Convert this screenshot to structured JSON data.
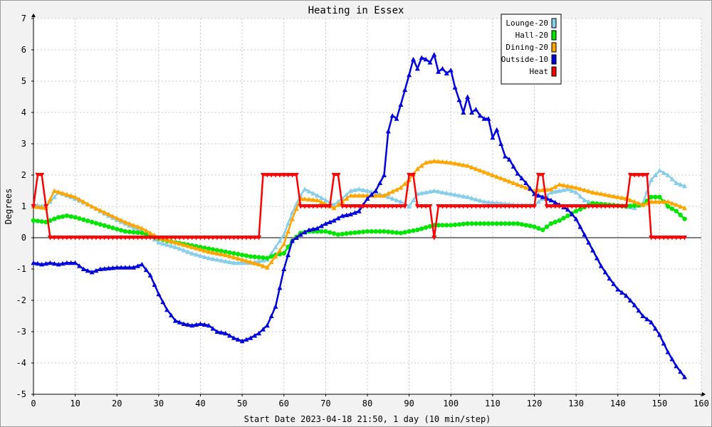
{
  "chart_data": {
    "type": "line",
    "title": "Heating in Essex",
    "xlabel": "Start Date 2023-04-18 21:50, 1 day (10 min/step)",
    "ylabel": "Degrees",
    "xlim": [
      0,
      160
    ],
    "ylim": [
      -5,
      7
    ],
    "x_ticks": [
      0,
      10,
      20,
      30,
      40,
      50,
      60,
      70,
      80,
      90,
      100,
      110,
      120,
      130,
      140,
      150,
      160
    ],
    "y_ticks": [
      -5,
      -4,
      -3,
      -2,
      -1,
      0,
      1,
      2,
      3,
      4,
      5,
      6,
      7
    ],
    "grid": true,
    "legend_position": "top-right",
    "series": [
      {
        "name": "Lounge-20",
        "color": "#87ceeb",
        "marker": "triangle",
        "points": [
          [
            0,
            1.05
          ],
          [
            3,
            1.0
          ],
          [
            6,
            1.45
          ],
          [
            10,
            1.25
          ],
          [
            14,
            1.0
          ],
          [
            18,
            0.7
          ],
          [
            22,
            0.45
          ],
          [
            26,
            0.2
          ],
          [
            28,
            0.05
          ],
          [
            30,
            -0.15
          ],
          [
            34,
            -0.3
          ],
          [
            38,
            -0.5
          ],
          [
            42,
            -0.65
          ],
          [
            46,
            -0.75
          ],
          [
            48,
            -0.8
          ],
          [
            52,
            -0.8
          ],
          [
            56,
            -0.7
          ],
          [
            58,
            -0.3
          ],
          [
            60,
            0.1
          ],
          [
            62,
            0.8
          ],
          [
            64,
            1.35
          ],
          [
            65,
            1.55
          ],
          [
            68,
            1.35
          ],
          [
            72,
            1.05
          ],
          [
            74,
            1.25
          ],
          [
            76,
            1.5
          ],
          [
            78,
            1.55
          ],
          [
            80,
            1.5
          ],
          [
            84,
            1.35
          ],
          [
            88,
            1.15
          ],
          [
            90,
            1.0
          ],
          [
            92,
            1.4
          ],
          [
            96,
            1.5
          ],
          [
            100,
            1.4
          ],
          [
            104,
            1.3
          ],
          [
            108,
            1.15
          ],
          [
            112,
            1.1
          ],
          [
            116,
            1.05
          ],
          [
            120,
            1.05
          ],
          [
            122,
            1.25
          ],
          [
            124,
            1.45
          ],
          [
            128,
            1.55
          ],
          [
            130,
            1.45
          ],
          [
            132,
            1.2
          ],
          [
            135,
            1.05
          ],
          [
            140,
            1.05
          ],
          [
            144,
            0.95
          ],
          [
            146,
            1.1
          ],
          [
            148,
            1.85
          ],
          [
            150,
            2.15
          ],
          [
            152,
            2.0
          ],
          [
            154,
            1.75
          ],
          [
            156,
            1.65
          ]
        ]
      },
      {
        "name": "Hall-20",
        "color": "#00e600",
        "marker": "circle",
        "points": [
          [
            0,
            0.55
          ],
          [
            3,
            0.5
          ],
          [
            6,
            0.65
          ],
          [
            8,
            0.7
          ],
          [
            10,
            0.65
          ],
          [
            14,
            0.5
          ],
          [
            18,
            0.35
          ],
          [
            22,
            0.2
          ],
          [
            26,
            0.15
          ],
          [
            28,
            0.05
          ],
          [
            32,
            -0.1
          ],
          [
            36,
            -0.2
          ],
          [
            40,
            -0.3
          ],
          [
            44,
            -0.4
          ],
          [
            48,
            -0.5
          ],
          [
            52,
            -0.6
          ],
          [
            56,
            -0.65
          ],
          [
            58,
            -0.55
          ],
          [
            60,
            -0.5
          ],
          [
            62,
            -0.1
          ],
          [
            64,
            0.15
          ],
          [
            66,
            0.2
          ],
          [
            70,
            0.2
          ],
          [
            73,
            0.1
          ],
          [
            76,
            0.15
          ],
          [
            80,
            0.2
          ],
          [
            84,
            0.2
          ],
          [
            88,
            0.15
          ],
          [
            92,
            0.25
          ],
          [
            96,
            0.4
          ],
          [
            100,
            0.4
          ],
          [
            104,
            0.45
          ],
          [
            108,
            0.45
          ],
          [
            112,
            0.45
          ],
          [
            116,
            0.45
          ],
          [
            120,
            0.35
          ],
          [
            122,
            0.25
          ],
          [
            124,
            0.45
          ],
          [
            126,
            0.55
          ],
          [
            130,
            0.85
          ],
          [
            134,
            1.1
          ],
          [
            138,
            1.05
          ],
          [
            142,
            1.0
          ],
          [
            146,
            1.05
          ],
          [
            148,
            1.3
          ],
          [
            150,
            1.3
          ],
          [
            152,
            1.0
          ],
          [
            154,
            0.85
          ],
          [
            156,
            0.6
          ]
        ]
      },
      {
        "name": "Dining-20",
        "color": "#ffa500",
        "marker": "triangle",
        "points": [
          [
            0,
            1.0
          ],
          [
            3,
            0.95
          ],
          [
            5,
            1.5
          ],
          [
            10,
            1.3
          ],
          [
            14,
            1.0
          ],
          [
            18,
            0.75
          ],
          [
            22,
            0.5
          ],
          [
            26,
            0.3
          ],
          [
            30,
            0.0
          ],
          [
            34,
            -0.15
          ],
          [
            38,
            -0.3
          ],
          [
            42,
            -0.45
          ],
          [
            46,
            -0.55
          ],
          [
            50,
            -0.7
          ],
          [
            54,
            -0.85
          ],
          [
            56,
            -0.95
          ],
          [
            58,
            -0.6
          ],
          [
            60,
            -0.2
          ],
          [
            62,
            0.6
          ],
          [
            64,
            1.25
          ],
          [
            68,
            1.2
          ],
          [
            72,
            0.95
          ],
          [
            76,
            1.35
          ],
          [
            80,
            1.35
          ],
          [
            84,
            1.35
          ],
          [
            88,
            1.6
          ],
          [
            90,
            1.85
          ],
          [
            92,
            2.2
          ],
          [
            94,
            2.4
          ],
          [
            96,
            2.45
          ],
          [
            100,
            2.4
          ],
          [
            104,
            2.3
          ],
          [
            108,
            2.1
          ],
          [
            112,
            1.9
          ],
          [
            116,
            1.7
          ],
          [
            120,
            1.5
          ],
          [
            124,
            1.55
          ],
          [
            126,
            1.7
          ],
          [
            130,
            1.6
          ],
          [
            134,
            1.45
          ],
          [
            138,
            1.35
          ],
          [
            142,
            1.25
          ],
          [
            146,
            1.05
          ],
          [
            148,
            1.15
          ],
          [
            152,
            1.15
          ],
          [
            156,
            0.95
          ]
        ]
      },
      {
        "name": "Outside-10",
        "color": "#0000dd",
        "marker": "triangle",
        "points": [
          [
            0,
            -0.8
          ],
          [
            2,
            -0.85
          ],
          [
            4,
            -0.8
          ],
          [
            6,
            -0.85
          ],
          [
            8,
            -0.8
          ],
          [
            10,
            -0.8
          ],
          [
            12,
            -1.0
          ],
          [
            14,
            -1.1
          ],
          [
            16,
            -1.0
          ],
          [
            20,
            -0.95
          ],
          [
            24,
            -0.95
          ],
          [
            26,
            -0.85
          ],
          [
            28,
            -1.2
          ],
          [
            30,
            -1.8
          ],
          [
            32,
            -2.3
          ],
          [
            34,
            -2.65
          ],
          [
            36,
            -2.75
          ],
          [
            38,
            -2.8
          ],
          [
            40,
            -2.75
          ],
          [
            42,
            -2.8
          ],
          [
            44,
            -3.0
          ],
          [
            46,
            -3.05
          ],
          [
            48,
            -3.2
          ],
          [
            50,
            -3.3
          ],
          [
            52,
            -3.2
          ],
          [
            54,
            -3.05
          ],
          [
            56,
            -2.8
          ],
          [
            58,
            -2.2
          ],
          [
            60,
            -1.0
          ],
          [
            62,
            -0.1
          ],
          [
            64,
            0.1
          ],
          [
            66,
            0.25
          ],
          [
            68,
            0.3
          ],
          [
            70,
            0.45
          ],
          [
            72,
            0.55
          ],
          [
            74,
            0.7
          ],
          [
            76,
            0.75
          ],
          [
            78,
            0.85
          ],
          [
            80,
            1.25
          ],
          [
            82,
            1.5
          ],
          [
            84,
            2.0
          ],
          [
            85,
            3.4
          ],
          [
            86,
            3.9
          ],
          [
            87,
            3.8
          ],
          [
            88,
            4.25
          ],
          [
            90,
            5.2
          ],
          [
            91,
            5.7
          ],
          [
            92,
            5.4
          ],
          [
            93,
            5.75
          ],
          [
            94,
            5.7
          ],
          [
            95,
            5.6
          ],
          [
            96,
            5.85
          ],
          [
            97,
            5.3
          ],
          [
            98,
            5.4
          ],
          [
            99,
            5.25
          ],
          [
            100,
            5.35
          ],
          [
            101,
            4.8
          ],
          [
            102,
            4.4
          ],
          [
            103,
            4.0
          ],
          [
            104,
            4.5
          ],
          [
            105,
            4.0
          ],
          [
            106,
            4.1
          ],
          [
            107,
            3.9
          ],
          [
            108,
            3.8
          ],
          [
            109,
            3.8
          ],
          [
            110,
            3.2
          ],
          [
            111,
            3.45
          ],
          [
            112,
            3.0
          ],
          [
            113,
            2.6
          ],
          [
            114,
            2.5
          ],
          [
            116,
            2.05
          ],
          [
            118,
            1.75
          ],
          [
            120,
            1.4
          ],
          [
            122,
            1.3
          ],
          [
            124,
            1.2
          ],
          [
            126,
            1.05
          ],
          [
            128,
            0.9
          ],
          [
            130,
            0.6
          ],
          [
            132,
            0.1
          ],
          [
            134,
            -0.4
          ],
          [
            136,
            -0.9
          ],
          [
            138,
            -1.3
          ],
          [
            140,
            -1.65
          ],
          [
            142,
            -1.85
          ],
          [
            144,
            -2.15
          ],
          [
            146,
            -2.5
          ],
          [
            148,
            -2.7
          ],
          [
            150,
            -3.1
          ],
          [
            152,
            -3.65
          ],
          [
            154,
            -4.1
          ],
          [
            156,
            -4.45
          ]
        ]
      },
      {
        "name": "Heat",
        "color": "#ff0000",
        "marker": "triangle-down",
        "points": [
          [
            0,
            1.0
          ],
          [
            1,
            2.0
          ],
          [
            2,
            2.0
          ],
          [
            3,
            1.0
          ],
          [
            4,
            0.0
          ],
          [
            54,
            0.0
          ],
          [
            55,
            2.0
          ],
          [
            63,
            2.0
          ],
          [
            64,
            1.0
          ],
          [
            71,
            1.0
          ],
          [
            72,
            2.0
          ],
          [
            73,
            2.0
          ],
          [
            74,
            1.0
          ],
          [
            89,
            1.0
          ],
          [
            90,
            2.0
          ],
          [
            91,
            2.0
          ],
          [
            92,
            1.0
          ],
          [
            95,
            1.0
          ],
          [
            96,
            0.0
          ],
          [
            97,
            1.0
          ],
          [
            120,
            1.0
          ],
          [
            121,
            2.0
          ],
          [
            122,
            2.0
          ],
          [
            123,
            1.0
          ],
          [
            142,
            1.0
          ],
          [
            143,
            2.0
          ],
          [
            147,
            2.0
          ],
          [
            148,
            0.0
          ],
          [
            156,
            0.0
          ]
        ]
      }
    ]
  }
}
